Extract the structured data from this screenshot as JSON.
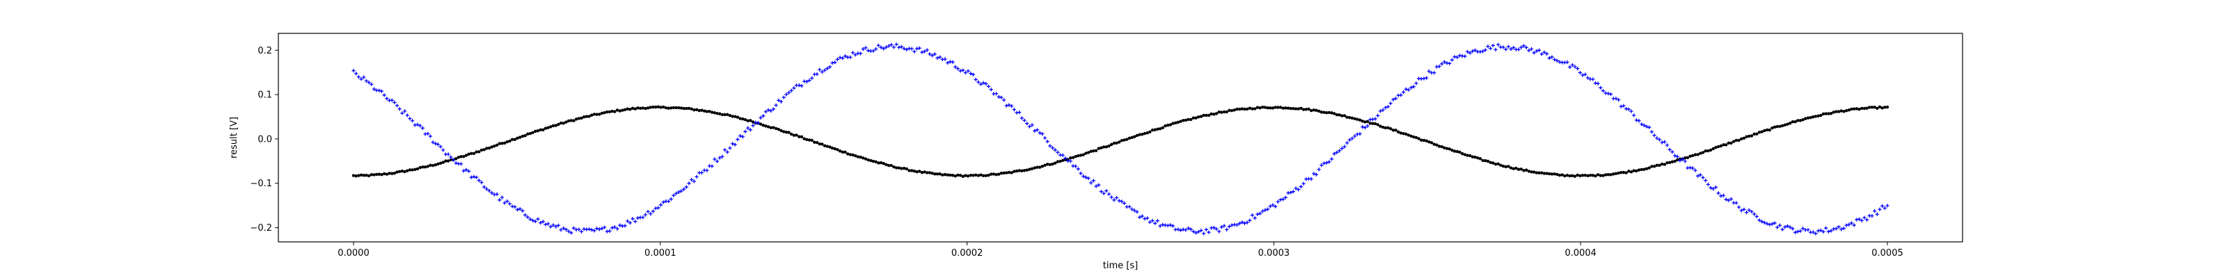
{
  "chart_data": {
    "type": "scatter",
    "title": "",
    "xlabel": "time [s]",
    "ylabel": "result [V]",
    "xlim": [
      -2.45e-05,
      0.0005245
    ],
    "ylim": [
      -0.232,
      0.238
    ],
    "x_ticks": [
      0.0,
      0.0001,
      0.0002,
      0.0003,
      0.0004,
      0.0005
    ],
    "x_tick_labels": [
      "0.0000",
      "0.0001",
      "0.0002",
      "0.0003",
      "0.0004",
      "0.0005"
    ],
    "y_ticks": [
      -0.2,
      -0.1,
      0.0,
      0.1,
      0.2
    ],
    "y_tick_labels": [
      "−0.2",
      "−0.1",
      "0.0",
      "0.1",
      "0.2"
    ],
    "grid": false,
    "legend": "none",
    "x_range": [
      0.0,
      0.0005
    ],
    "samples_per_series": 600,
    "series": [
      {
        "color": "#0000ff",
        "marker": "plus",
        "model": "sine",
        "amplitude": 0.208,
        "frequency_hz": 5000,
        "phase_rad": 2.34,
        "offset": 0.0,
        "noise": 0.006
      },
      {
        "color": "#000000",
        "marker": "dot",
        "model": "sine",
        "amplitude": 0.077,
        "frequency_hz": 5000,
        "phase_rad": -1.57,
        "offset": -0.006,
        "noise": 0.0015
      }
    ]
  }
}
